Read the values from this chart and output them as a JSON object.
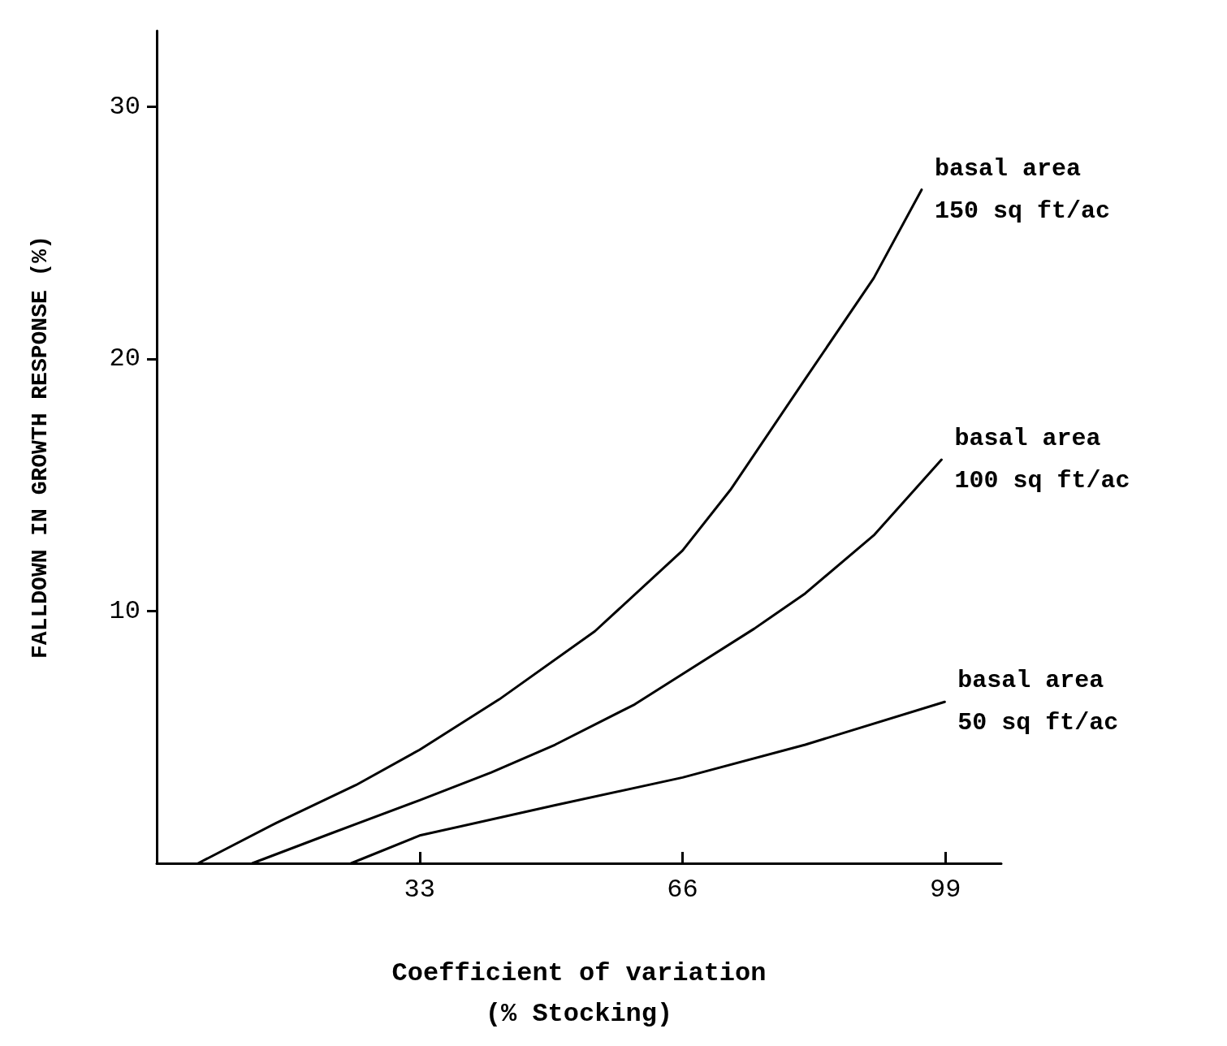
{
  "chart_data": {
    "type": "line",
    "xlabel": "Coefficient of variation\n(% Stocking)",
    "ylabel": "FALLDOWN IN GROWTH RESPONSE (%)",
    "xlim": [
      0,
      106
    ],
    "ylim": [
      0,
      33
    ],
    "xticks": [
      33,
      66,
      99
    ],
    "yticks": [
      10,
      20,
      30
    ],
    "grid": false,
    "legend": false,
    "marker": "none",
    "line_style": "solid",
    "series": [
      {
        "name": "basal area\n150 sq ft/ac",
        "color": "#000000",
        "x": [
          5.2,
          15,
          25,
          33,
          43,
          55,
          66,
          72,
          81.4,
          90,
          96
        ],
        "values": [
          0,
          1.6,
          3.1,
          4.5,
          6.5,
          9.2,
          12.4,
          14.8,
          19.2,
          23.2,
          26.7
        ]
      },
      {
        "name": "basal area\n100 sq ft/ac",
        "color": "#000000",
        "x": [
          12,
          22,
          33,
          42,
          50,
          60,
          66,
          75,
          81.4,
          90,
          98.5
        ],
        "values": [
          0,
          1.2,
          2.5,
          3.6,
          4.7,
          6.3,
          7.5,
          9.3,
          10.7,
          13,
          16
        ]
      },
      {
        "name": "basal area\n50 sq ft/ac",
        "color": "#000000",
        "x": [
          24.4,
          33,
          50,
          66,
          81.4,
          98.9
        ],
        "values": [
          0,
          1.1,
          2.3,
          3.4,
          4.7,
          6.4
        ]
      }
    ]
  }
}
